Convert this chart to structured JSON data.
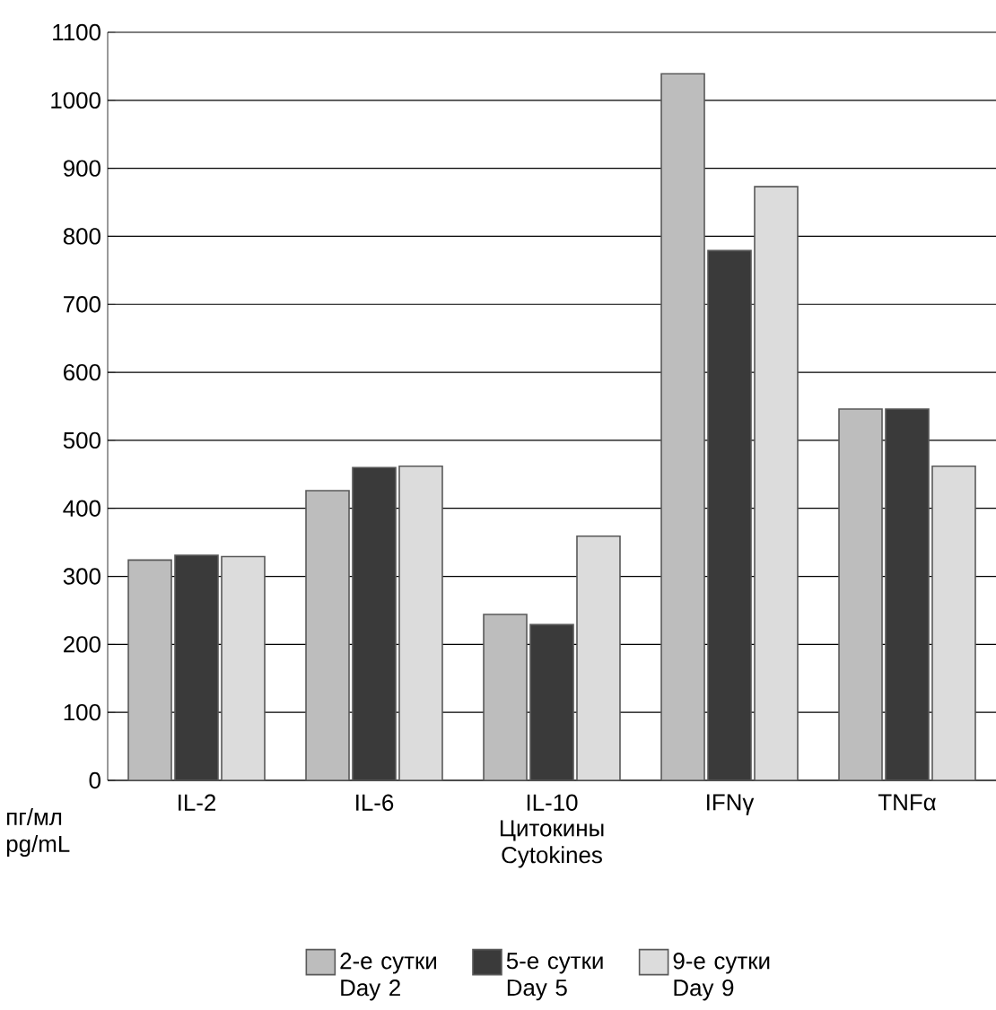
{
  "chart_data": {
    "type": "bar",
    "categories": [
      "IL-2",
      "IL-6",
      "IL-10",
      "IFNγ",
      "TNFα"
    ],
    "xlabel": "Цитокины Cytokines",
    "ylabel": "пг/мл pg/mL",
    "series": [
      {
        "name": "2-е сутки Day 2",
        "color": "#bdbdbd",
        "values": [
          324,
          426,
          244,
          1039,
          546
        ]
      },
      {
        "name": "5-е сутки Day 5",
        "color": "#3a3a3a",
        "values": [
          331,
          460,
          229,
          779,
          546
        ]
      },
      {
        "name": "9-е сутки Day 9",
        "color": "#dcdcdc",
        "values": [
          329,
          462,
          359,
          873,
          462
        ]
      }
    ],
    "ylim": [
      0,
      1100
    ],
    "yticks": [
      0,
      100,
      200,
      300,
      400,
      500,
      600,
      700,
      800,
      900,
      1000,
      1100
    ],
    "grid": "y",
    "legend": "bottom"
  }
}
